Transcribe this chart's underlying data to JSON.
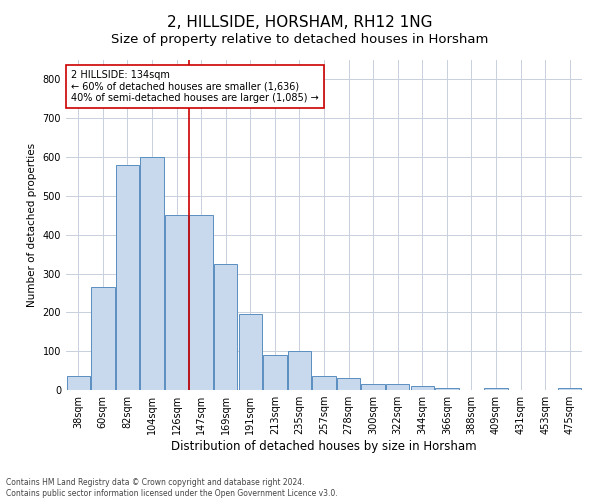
{
  "title": "2, HILLSIDE, HORSHAM, RH12 1NG",
  "subtitle": "Size of property relative to detached houses in Horsham",
  "xlabel": "Distribution of detached houses by size in Horsham",
  "ylabel": "Number of detached properties",
  "categories": [
    "38sqm",
    "60sqm",
    "82sqm",
    "104sqm",
    "126sqm",
    "147sqm",
    "169sqm",
    "191sqm",
    "213sqm",
    "235sqm",
    "257sqm",
    "278sqm",
    "300sqm",
    "322sqm",
    "344sqm",
    "366sqm",
    "388sqm",
    "409sqm",
    "431sqm",
    "453sqm",
    "475sqm"
  ],
  "values": [
    35,
    265,
    580,
    600,
    450,
    450,
    325,
    195,
    90,
    100,
    35,
    30,
    15,
    15,
    10,
    5,
    0,
    5,
    0,
    0,
    5
  ],
  "bar_color": "#c8d8ed",
  "bar_edge_color": "#5a8fc0",
  "red_line_index": 4,
  "annotation_text": "2 HILLSIDE: 134sqm\n← 60% of detached houses are smaller (1,636)\n40% of semi-detached houses are larger (1,085) →",
  "annotation_box_color": "#ffffff",
  "annotation_box_edge": "#cc0000",
  "ylim": [
    0,
    850
  ],
  "yticks": [
    0,
    100,
    200,
    300,
    400,
    500,
    600,
    700,
    800
  ],
  "grid_color": "#c8d0df",
  "footer_line1": "Contains HM Land Registry data © Crown copyright and database right 2024.",
  "footer_line2": "Contains public sector information licensed under the Open Government Licence v3.0.",
  "title_fontsize": 11,
  "subtitle_fontsize": 9.5,
  "xlabel_fontsize": 8.5,
  "ylabel_fontsize": 7.5,
  "tick_fontsize": 7,
  "annotation_fontsize": 7,
  "footer_fontsize": 5.5
}
